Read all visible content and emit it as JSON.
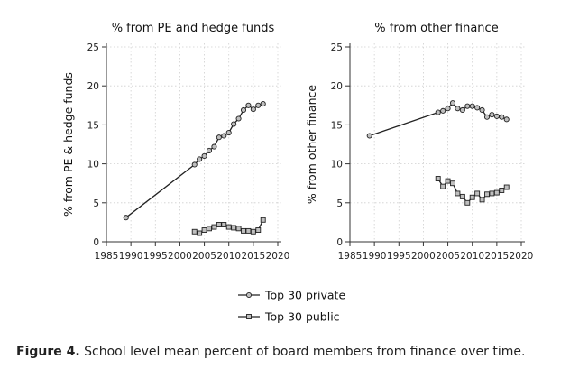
{
  "chart_data": [
    {
      "type": "line",
      "title": "% from PE and hedge funds",
      "ylabel": "% from PE & hedge funds",
      "xlabel": "",
      "xlim": [
        1985,
        2020
      ],
      "ylim": [
        0,
        25
      ],
      "xticks": [
        1985,
        1990,
        1995,
        2000,
        2005,
        2010,
        2015,
        2020
      ],
      "yticks": [
        0,
        5,
        10,
        15,
        20,
        25
      ],
      "grid": true,
      "series": [
        {
          "name": "Top 30 private",
          "marker": "circle",
          "x": [
            1989,
            2003,
            2004,
            2005,
            2006,
            2007,
            2008,
            2009,
            2010,
            2011,
            2012,
            2013,
            2014,
            2015,
            2016,
            2017
          ],
          "y": [
            3.1,
            9.9,
            10.6,
            11.0,
            11.7,
            12.2,
            13.4,
            13.6,
            14.0,
            15.1,
            15.8,
            16.9,
            17.5,
            17.0,
            17.5,
            17.7
          ]
        },
        {
          "name": "Top 30 public",
          "marker": "square",
          "x": [
            2003,
            2004,
            2005,
            2006,
            2007,
            2008,
            2009,
            2010,
            2011,
            2012,
            2013,
            2014,
            2015,
            2016,
            2017
          ],
          "y": [
            1.3,
            1.1,
            1.5,
            1.7,
            1.9,
            2.2,
            2.2,
            1.9,
            1.8,
            1.7,
            1.4,
            1.4,
            1.3,
            1.5,
            2.8
          ]
        }
      ]
    },
    {
      "type": "line",
      "title": "% from other finance",
      "ylabel": "% from other finance",
      "xlabel": "",
      "xlim": [
        1985,
        2020
      ],
      "ylim": [
        0,
        25
      ],
      "xticks": [
        1985,
        1990,
        1995,
        2000,
        2005,
        2010,
        2015,
        2020
      ],
      "yticks": [
        0,
        5,
        10,
        15,
        20,
        25
      ],
      "grid": true,
      "series": [
        {
          "name": "Top 30 private",
          "marker": "circle",
          "x": [
            1989,
            2003,
            2004,
            2005,
            2006,
            2007,
            2008,
            2009,
            2010,
            2011,
            2012,
            2013,
            2014,
            2015,
            2016,
            2017
          ],
          "y": [
            13.6,
            16.6,
            16.8,
            17.1,
            17.8,
            17.1,
            16.9,
            17.4,
            17.4,
            17.2,
            16.9,
            16.0,
            16.3,
            16.1,
            16.0,
            15.7
          ]
        },
        {
          "name": "Top 30 public",
          "marker": "square",
          "x": [
            2003,
            2004,
            2005,
            2006,
            2007,
            2008,
            2009,
            2010,
            2011,
            2012,
            2013,
            2014,
            2015,
            2016,
            2017
          ],
          "y": [
            8.1,
            7.1,
            7.8,
            7.5,
            6.2,
            5.8,
            5.0,
            5.7,
            6.2,
            5.4,
            6.1,
            6.2,
            6.3,
            6.6,
            7.0
          ]
        }
      ]
    }
  ],
  "legend": {
    "placement": "bottom-center",
    "entries": [
      {
        "label": "Top 30 private",
        "marker": "circle"
      },
      {
        "label": "Top 30 public",
        "marker": "square"
      }
    ]
  },
  "caption": {
    "label": "Figure 4.",
    "text": "School level mean percent of board members from finance over time."
  },
  "colors": {
    "line": "#222222",
    "marker_fill": "#bfbfbf",
    "grid": "#cfcfcf"
  }
}
